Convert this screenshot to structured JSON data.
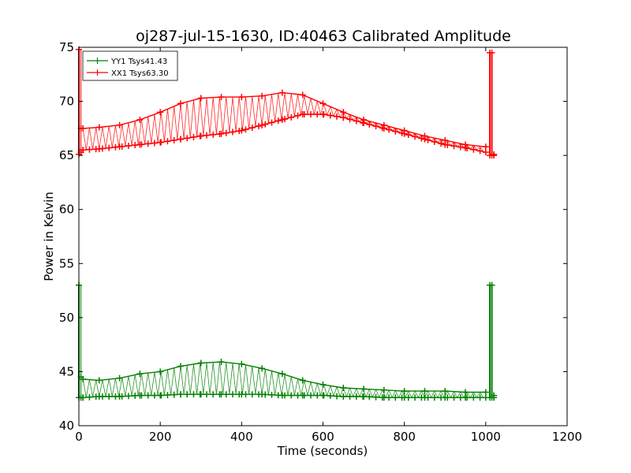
{
  "chart_data": {
    "type": "line",
    "title": "oj287-jul-15-1630, ID:40463 Calibrated Amplitude",
    "xlabel": "Time (seconds)",
    "ylabel": "Power in Kelvin",
    "xlim": [
      0,
      1200
    ],
    "ylim": [
      40,
      75
    ],
    "xticks": [
      0,
      200,
      400,
      600,
      800,
      1000,
      1200
    ],
    "yticks": [
      40,
      45,
      50,
      55,
      60,
      65,
      70,
      75
    ],
    "grid": false,
    "legend_position": "top-left",
    "series": [
      {
        "name": "YY1 Tsys41.43",
        "color": "#008000",
        "marker": "+",
        "x": [
          0,
          5,
          10,
          50,
          100,
          150,
          200,
          250,
          300,
          350,
          400,
          450,
          500,
          550,
          600,
          650,
          700,
          750,
          800,
          850,
          900,
          950,
          1000,
          1010,
          1015,
          1020
        ],
        "high": [
          53,
          44.5,
          44.3,
          44.2,
          44.4,
          44.8,
          45.0,
          45.5,
          45.8,
          45.9,
          45.7,
          45.3,
          44.8,
          44.2,
          43.8,
          43.5,
          43.4,
          43.3,
          43.2,
          43.2,
          43.2,
          43.1,
          43.1,
          53,
          53,
          42.8
        ],
        "low": [
          42.6,
          42.6,
          42.6,
          42.7,
          42.7,
          42.8,
          42.8,
          42.9,
          42.9,
          42.9,
          42.9,
          42.9,
          42.8,
          42.8,
          42.8,
          42.7,
          42.7,
          42.6,
          42.6,
          42.6,
          42.6,
          42.6,
          42.6,
          42.6,
          42.6,
          42.6
        ]
      },
      {
        "name": "XX1 Tsys63.30",
        "color": "#ff0000",
        "marker": "+",
        "x": [
          0,
          5,
          10,
          50,
          100,
          150,
          200,
          250,
          300,
          350,
          400,
          450,
          500,
          550,
          600,
          650,
          700,
          750,
          800,
          850,
          900,
          950,
          1000,
          1010,
          1015,
          1020
        ],
        "high": [
          74.8,
          67.5,
          67.5,
          67.6,
          67.8,
          68.3,
          69.0,
          69.8,
          70.3,
          70.4,
          70.4,
          70.5,
          70.8,
          70.6,
          69.8,
          69.0,
          68.3,
          67.8,
          67.3,
          66.8,
          66.4,
          66.0,
          65.8,
          74.5,
          74.5,
          65.1
        ],
        "low": [
          65.1,
          65.3,
          65.5,
          65.6,
          65.8,
          66.0,
          66.2,
          66.5,
          66.8,
          67.0,
          67.3,
          67.8,
          68.3,
          68.8,
          68.8,
          68.5,
          68.0,
          67.5,
          67.0,
          66.5,
          66.0,
          65.7,
          65.3,
          65.0,
          65.0,
          65.0
        ]
      }
    ]
  }
}
